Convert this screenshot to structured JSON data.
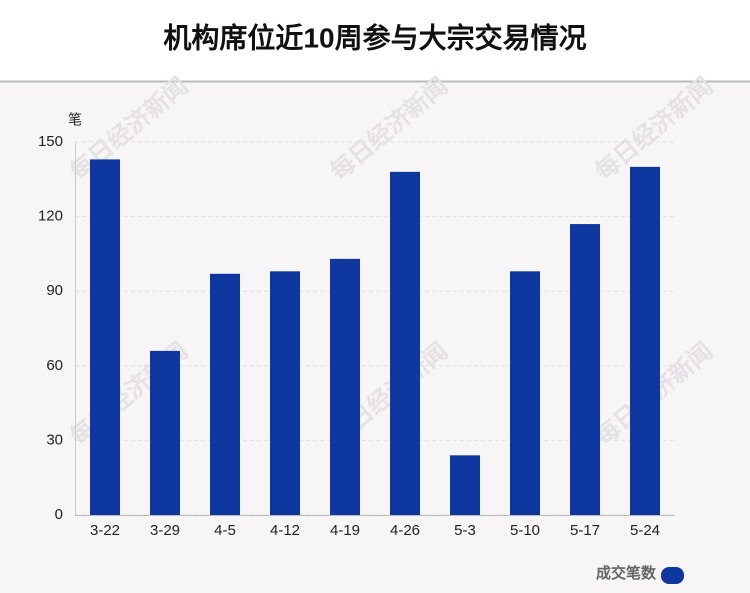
{
  "chart_data": {
    "type": "bar",
    "title": "机构席位近10周参与大宗交易情况",
    "y_label": "笔",
    "categories": [
      "3-22",
      "3-29",
      "4-5",
      "4-12",
      "4-19",
      "4-26",
      "5-3",
      "5-10",
      "5-17",
      "5-24"
    ],
    "series": [
      {
        "name": "成交笔数",
        "color": "#0e37a0",
        "values": [
          143,
          66,
          97,
          98,
          103,
          138,
          24,
          98,
          117,
          140
        ]
      }
    ],
    "ylim": [
      0,
      150
    ],
    "yticks": [
      0,
      30,
      60,
      90,
      120,
      150
    ],
    "grid": true,
    "legend": "bottom-right",
    "watermark": "每日经济新闻"
  }
}
